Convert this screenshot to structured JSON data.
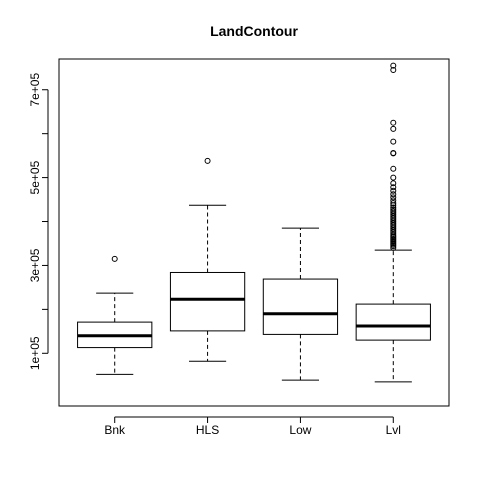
{
  "chart_data": {
    "type": "boxplot",
    "title": "LandContour",
    "xlabel": "",
    "ylabel": "",
    "categories": [
      "Bnk",
      "HLS",
      "Low",
      "Lvl"
    ],
    "ylim": [
      -20000,
      770000
    ],
    "y_ticks": [
      100000,
      200000,
      300000,
      400000,
      500000,
      600000,
      700000
    ],
    "y_tick_labels": [
      "1e+05",
      "",
      "3e+05",
      "",
      "5e+05",
      "",
      "7e+05"
    ],
    "grid": false,
    "legend": "none",
    "boxes": [
      {
        "category": "Bnk",
        "whisker_low": 52000,
        "q1": 113000,
        "median": 140000,
        "q3": 171000,
        "whisker_high": 237000,
        "outliers": [
          315000
        ]
      },
      {
        "category": "HLS",
        "whisker_low": 82000,
        "q1": 151000,
        "median": 223000,
        "q3": 284000,
        "whisker_high": 437000,
        "outliers": [
          538000
        ]
      },
      {
        "category": "Low",
        "whisker_low": 39000,
        "q1": 143000,
        "median": 190000,
        "q3": 269000,
        "whisker_high": 385000,
        "outliers": []
      },
      {
        "category": "Lvl",
        "whisker_low": 35000,
        "q1": 130000,
        "median": 162000,
        "q3": 212000,
        "whisker_high": 335000,
        "outliers": [
          340000,
          344000,
          347000,
          350000,
          353000,
          356000,
          359000,
          362000,
          365000,
          368000,
          372000,
          376000,
          380000,
          384000,
          388000,
          392000,
          396000,
          400000,
          404000,
          408000,
          412000,
          416000,
          420000,
          424000,
          428000,
          432000,
          437000,
          442000,
          448000,
          455000,
          462000,
          470000,
          478000,
          487000,
          500000,
          520000,
          555000,
          556000,
          582000,
          611000,
          625000,
          745000,
          755000
        ]
      }
    ]
  }
}
